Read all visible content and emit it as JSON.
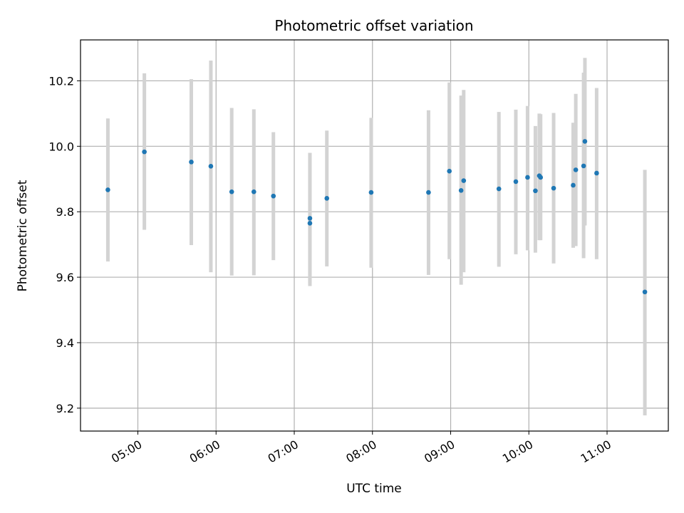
{
  "chart_data": {
    "type": "scatter",
    "title": "Photometric offset variation",
    "xlabel": "UTC time",
    "ylabel": "Photometric offset",
    "grid": true,
    "x_tick_labels": [
      "05:00",
      "06:00",
      "07:00",
      "08:00",
      "09:00",
      "10:00",
      "11:00"
    ],
    "y_tick_labels": [
      "9.2",
      "9.4",
      "9.6",
      "9.8",
      "10.0",
      "10.2"
    ],
    "y_ticks": [
      9.2,
      9.4,
      9.6,
      9.8,
      10.0,
      10.2
    ],
    "xlim": [
      "04:16",
      "11:47"
    ],
    "ylim": [
      9.13,
      10.325
    ],
    "point_color": "#1f77b4",
    "errorbar_color": "#d3d3d3",
    "series": [
      {
        "x": [
          "04:37",
          "05:05",
          "05:41",
          "05:56",
          "06:12",
          "06:29",
          "06:44",
          "07:12",
          "07:12",
          "07:25",
          "07:59",
          "08:43",
          "08:59",
          "09:08",
          "09:10",
          "09:37",
          "09:50",
          "09:59",
          "10:05",
          "10:08",
          "10:09",
          "10:19",
          "10:34",
          "10:36",
          "10:42",
          "10:43",
          "10:52",
          "11:29"
        ],
        "y": [
          9.867,
          9.983,
          9.952,
          9.939,
          9.861,
          9.861,
          9.848,
          9.765,
          9.78,
          9.841,
          9.859,
          9.859,
          9.924,
          9.865,
          9.895,
          9.87,
          9.892,
          9.905,
          9.864,
          9.91,
          9.905,
          9.872,
          9.881,
          9.928,
          9.94,
          10.015,
          9.918,
          9.555
        ],
        "y_low": [
          9.648,
          9.745,
          9.698,
          9.615,
          9.605,
          9.606,
          9.652,
          9.573,
          9.582,
          9.633,
          9.629,
          9.607,
          9.655,
          9.577,
          9.615,
          9.632,
          9.67,
          9.682,
          9.675,
          9.713,
          9.713,
          9.642,
          9.69,
          9.695,
          9.658,
          9.758,
          9.655,
          9.178
        ],
        "y_high": [
          10.085,
          10.223,
          10.205,
          10.262,
          10.117,
          10.113,
          10.043,
          9.98,
          9.98,
          10.048,
          10.087,
          10.11,
          10.195,
          10.155,
          10.172,
          10.105,
          10.112,
          10.123,
          10.062,
          10.1,
          10.098,
          10.102,
          10.072,
          10.16,
          10.225,
          10.27,
          10.178,
          9.928
        ]
      }
    ]
  }
}
